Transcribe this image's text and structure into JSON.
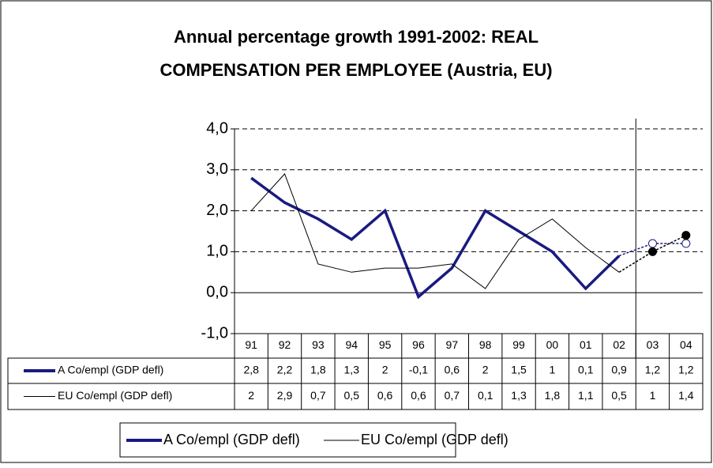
{
  "chart_data": {
    "type": "line",
    "title": "Annual percentage growth 1991-2002: REAL COMPENSATION PER EMPLOYEE (Austria, EU)",
    "categories": [
      "91",
      "92",
      "93",
      "94",
      "95",
      "96",
      "97",
      "98",
      "99",
      "00",
      "01",
      "02",
      "03",
      "04"
    ],
    "series": [
      {
        "name": "A Co/empl (GDP defl)",
        "color": "#1a1a80",
        "values": [
          2.8,
          2.2,
          1.8,
          1.3,
          2,
          -0.1,
          0.6,
          2,
          1.5,
          1,
          0.1,
          0.9,
          1.2,
          1.2
        ],
        "value_labels": [
          "2,8",
          "2,2",
          "1,8",
          "1,3",
          "2",
          "-0,1",
          "0,6",
          "2",
          "1,5",
          "1",
          "0,1",
          "0,9",
          "1,2",
          "1,2"
        ]
      },
      {
        "name": "EU Co/empl (GDP defl)",
        "color": "#000000",
        "values": [
          2,
          2.9,
          0.7,
          0.5,
          0.6,
          0.6,
          0.7,
          0.1,
          1.3,
          1.8,
          1.1,
          0.5,
          1,
          1.4
        ],
        "value_labels": [
          "2",
          "2,9",
          "0,7",
          "0,5",
          "0,6",
          "0,6",
          "0,7",
          "0,1",
          "1,3",
          "1,8",
          "1,1",
          "0,5",
          "1",
          "1,4"
        ]
      }
    ],
    "ylim": [
      -1,
      4
    ],
    "yticks": [
      {
        "value": -1,
        "label": "-1,0"
      },
      {
        "value": 0,
        "label": "0,0"
      },
      {
        "value": 1,
        "label": "1,0"
      },
      {
        "value": 2,
        "label": "2,0"
      },
      {
        "value": 3,
        "label": "3,0"
      },
      {
        "value": 4,
        "label": "4,0"
      }
    ],
    "grid": true,
    "legend": "bottom"
  }
}
